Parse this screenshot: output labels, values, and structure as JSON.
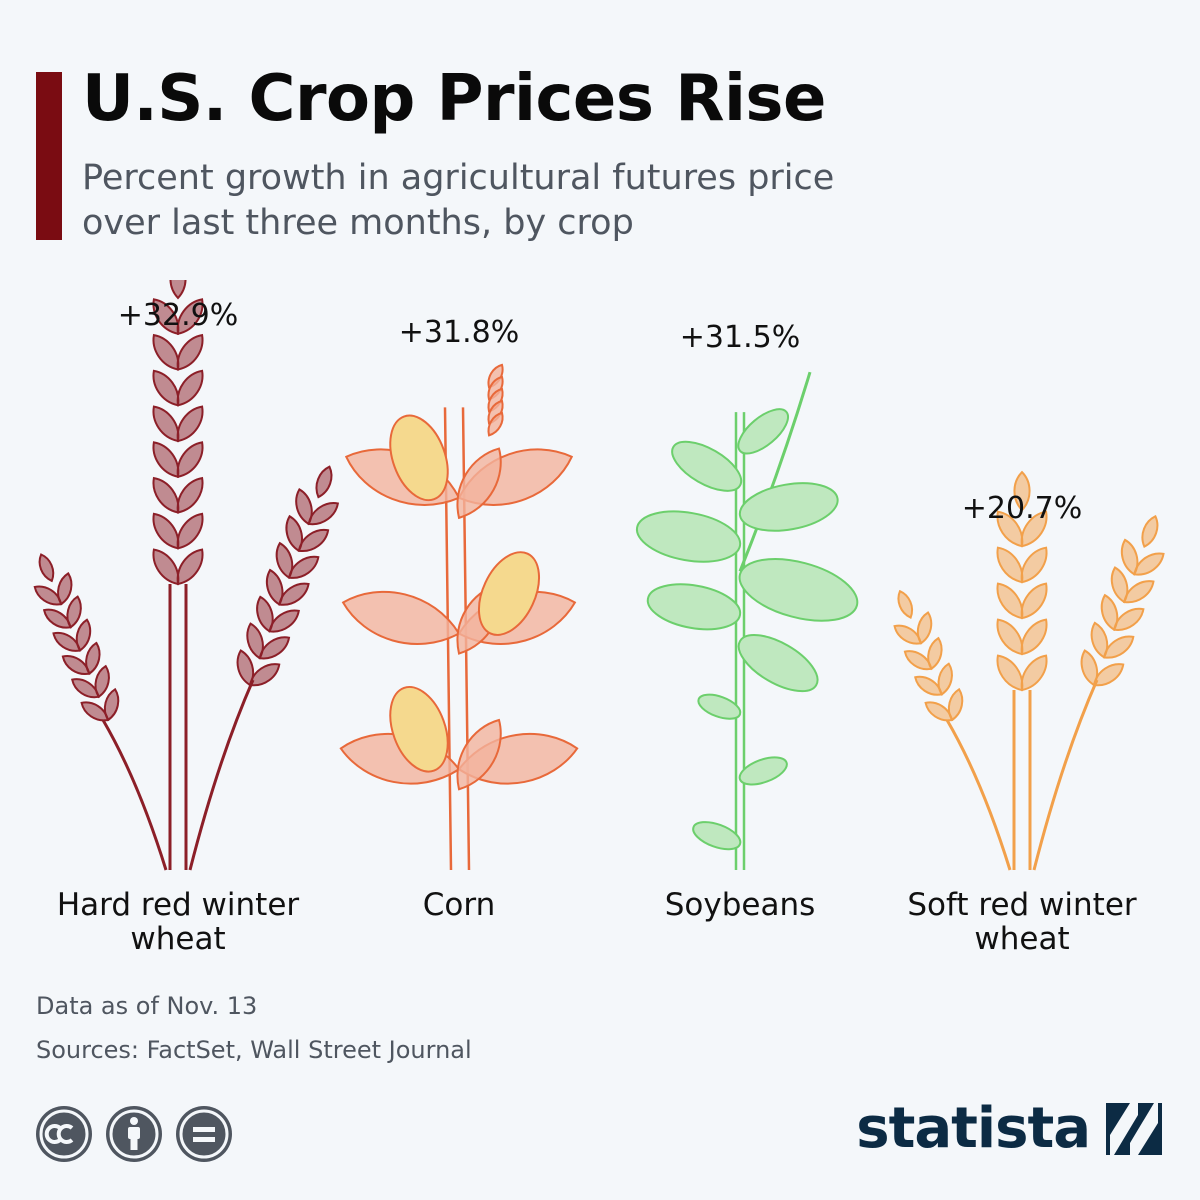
{
  "header": {
    "title": "U.S. Crop Prices Rise",
    "subtitle": "Percent growth in agricultural futures price over last three months, by crop"
  },
  "chart_data": {
    "type": "bar",
    "title": "U.S. Crop Prices Rise",
    "subtitle": "Percent growth in agricultural futures price over last three months, by crop",
    "categories": [
      "Hard red winter wheat",
      "Corn",
      "Soybeans",
      "Soft red winter wheat"
    ],
    "values": [
      32.9,
      31.8,
      31.5,
      20.7
    ],
    "value_labels": [
      "+32.9%",
      "+31.8%",
      "+31.5%",
      "+20.7%"
    ],
    "unit": "%",
    "ylim": [
      0,
      32.9
    ],
    "grid": false,
    "legend": "none"
  },
  "footer": {
    "date_note": "Data as of Nov. 13",
    "sources": "Sources: FactSet, Wall Street Journal",
    "brand": "statista"
  },
  "colors": {
    "accent": "#7a0c12",
    "hard_red_wheat": "#8c1f28",
    "corn": "#e8693a",
    "soybeans": "#6ccf6c",
    "soft_red_wheat": "#f2a04a",
    "brand": "#0c2b44"
  },
  "icons": [
    "creative-commons-icon",
    "attribution-icon",
    "no-derivatives-icon",
    "statista-logo-icon"
  ]
}
